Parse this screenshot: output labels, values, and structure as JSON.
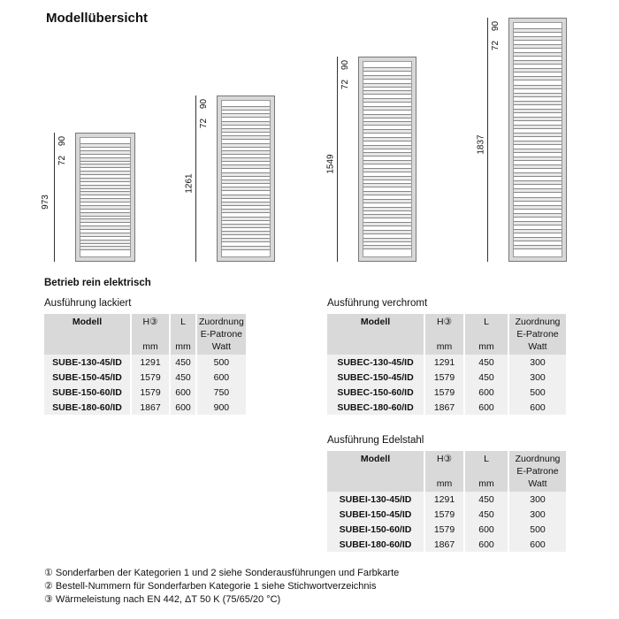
{
  "title": "Modellübersicht",
  "radiators": [
    {
      "height_label": "973",
      "top_label": "90",
      "spacing_label": "72",
      "bars": 16
    },
    {
      "height_label": "1261",
      "top_label": "90",
      "spacing_label": "72",
      "bars": 20
    },
    {
      "height_label": "1549",
      "top_label": "90",
      "spacing_label": "72",
      "bars": 24
    },
    {
      "height_label": "1837",
      "top_label": "90",
      "spacing_label": "72",
      "bars": 28
    }
  ],
  "section": "Betrieb rein elektrisch",
  "headers": {
    "modell": "Modell",
    "h": "H③",
    "l": "L",
    "watt1": "Zuordnung",
    "watt2": "E-Patrone",
    "watt3": "Watt",
    "mm": "mm"
  },
  "tables": [
    {
      "title": "Ausführung lackiert",
      "rows": [
        [
          "SUBE-130-45/ID",
          "1291",
          "450",
          "500"
        ],
        [
          "SUBE-150-45/ID",
          "1579",
          "450",
          "600"
        ],
        [
          "SUBE-150-60/ID",
          "1579",
          "600",
          "750"
        ],
        [
          "SUBE-180-60/ID",
          "1867",
          "600",
          "900"
        ]
      ]
    },
    {
      "title": "Ausführung verchromt",
      "rows": [
        [
          "SUBEC-130-45/ID",
          "1291",
          "450",
          "300"
        ],
        [
          "SUBEC-150-45/ID",
          "1579",
          "450",
          "300"
        ],
        [
          "SUBEC-150-60/ID",
          "1579",
          "600",
          "500"
        ],
        [
          "SUBEC-180-60/ID",
          "1867",
          "600",
          "600"
        ]
      ]
    },
    {
      "title": "Ausführung Edelstahl",
      "rows": [
        [
          "SUBEI-130-45/ID",
          "1291",
          "450",
          "300"
        ],
        [
          "SUBEI-150-45/ID",
          "1579",
          "450",
          "300"
        ],
        [
          "SUBEI-150-60/ID",
          "1579",
          "600",
          "500"
        ],
        [
          "SUBEI-180-60/ID",
          "1867",
          "600",
          "600"
        ]
      ]
    }
  ],
  "footnotes": [
    "① Sonderfarben der Kategorien 1 und 2 siehe Sonderausführungen und Farbkarte",
    "② Bestell-Nummern für Sonderfarben Kategorie 1 siehe Stichwortverzeichnis",
    "③ Wärmeleistung nach EN 442, ΔT 50 K (75/65/20 °C)"
  ]
}
